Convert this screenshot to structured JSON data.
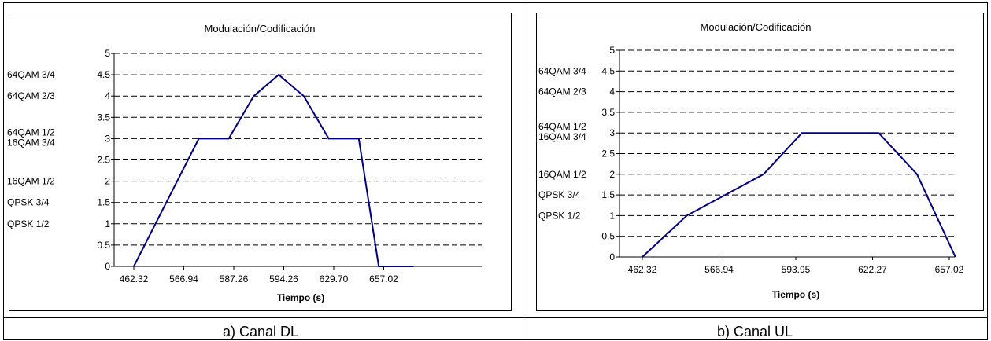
{
  "captions": [
    "a) Canal DL",
    "b) Canal UL"
  ],
  "chart_data": [
    {
      "type": "line",
      "title": "Modulación/Codificación",
      "xlabel": "Tiempo (s)",
      "ylabel": "",
      "ylim": [
        0,
        5
      ],
      "yticks": [
        "0",
        "0.5",
        "1",
        "1.5",
        "2",
        "2.5",
        "3",
        "3.5",
        "4",
        "4.5",
        "5"
      ],
      "ytick_labels": {
        "1": "QPSK 1/2",
        "1.5": "QPSK 3/4",
        "2": "16QAM 1/2",
        "3": [
          "64QAM 1/2",
          "16QAM 3/4"
        ],
        "4": "64QAM 2/3",
        "4.5": "64QAM 3/4"
      },
      "x_tick_labels": [
        "462.32",
        "566.94",
        "587.26",
        "594.26",
        "629.70",
        "657.02"
      ],
      "grid": true,
      "series": [
        {
          "values": [
            0,
            3,
            3,
            4,
            4.5,
            4,
            3,
            3,
            0,
            0
          ],
          "x_index": [
            0,
            1.3,
            1.9,
            2.4,
            2.9,
            3.4,
            3.9,
            4.5,
            4.9,
            5.6
          ]
        }
      ]
    },
    {
      "type": "line",
      "title": "Modulación/Codificación",
      "xlabel": "Tiempo (s)",
      "ylabel": "",
      "ylim": [
        0,
        5
      ],
      "yticks": [
        "0",
        "0.5",
        "1",
        "1.5",
        "2",
        "2.5",
        "3",
        "3.5",
        "4",
        "4.5",
        "5"
      ],
      "ytick_labels": {
        "1": "QPSK 1/2",
        "1.5": "QPSK 3/4",
        "2": "16QAM 1/2",
        "3": [
          "64QAM 1/2",
          "16QAM 3/4"
        ],
        "4": "64QAM 2/3",
        "4.5": "64QAM 3/4"
      },
      "x_tick_labels": [
        "462.32",
        "566.94",
        "593.95",
        "622.27",
        "657.02"
      ],
      "grid": true,
      "series": [
        {
          "values": [
            0,
            1,
            1.5,
            2,
            3,
            3,
            3,
            2,
            0
          ],
          "x_index": [
            0,
            0.58,
            1.08,
            1.58,
            2.08,
            2.58,
            3.08,
            3.58,
            4.08
          ]
        }
      ]
    }
  ]
}
